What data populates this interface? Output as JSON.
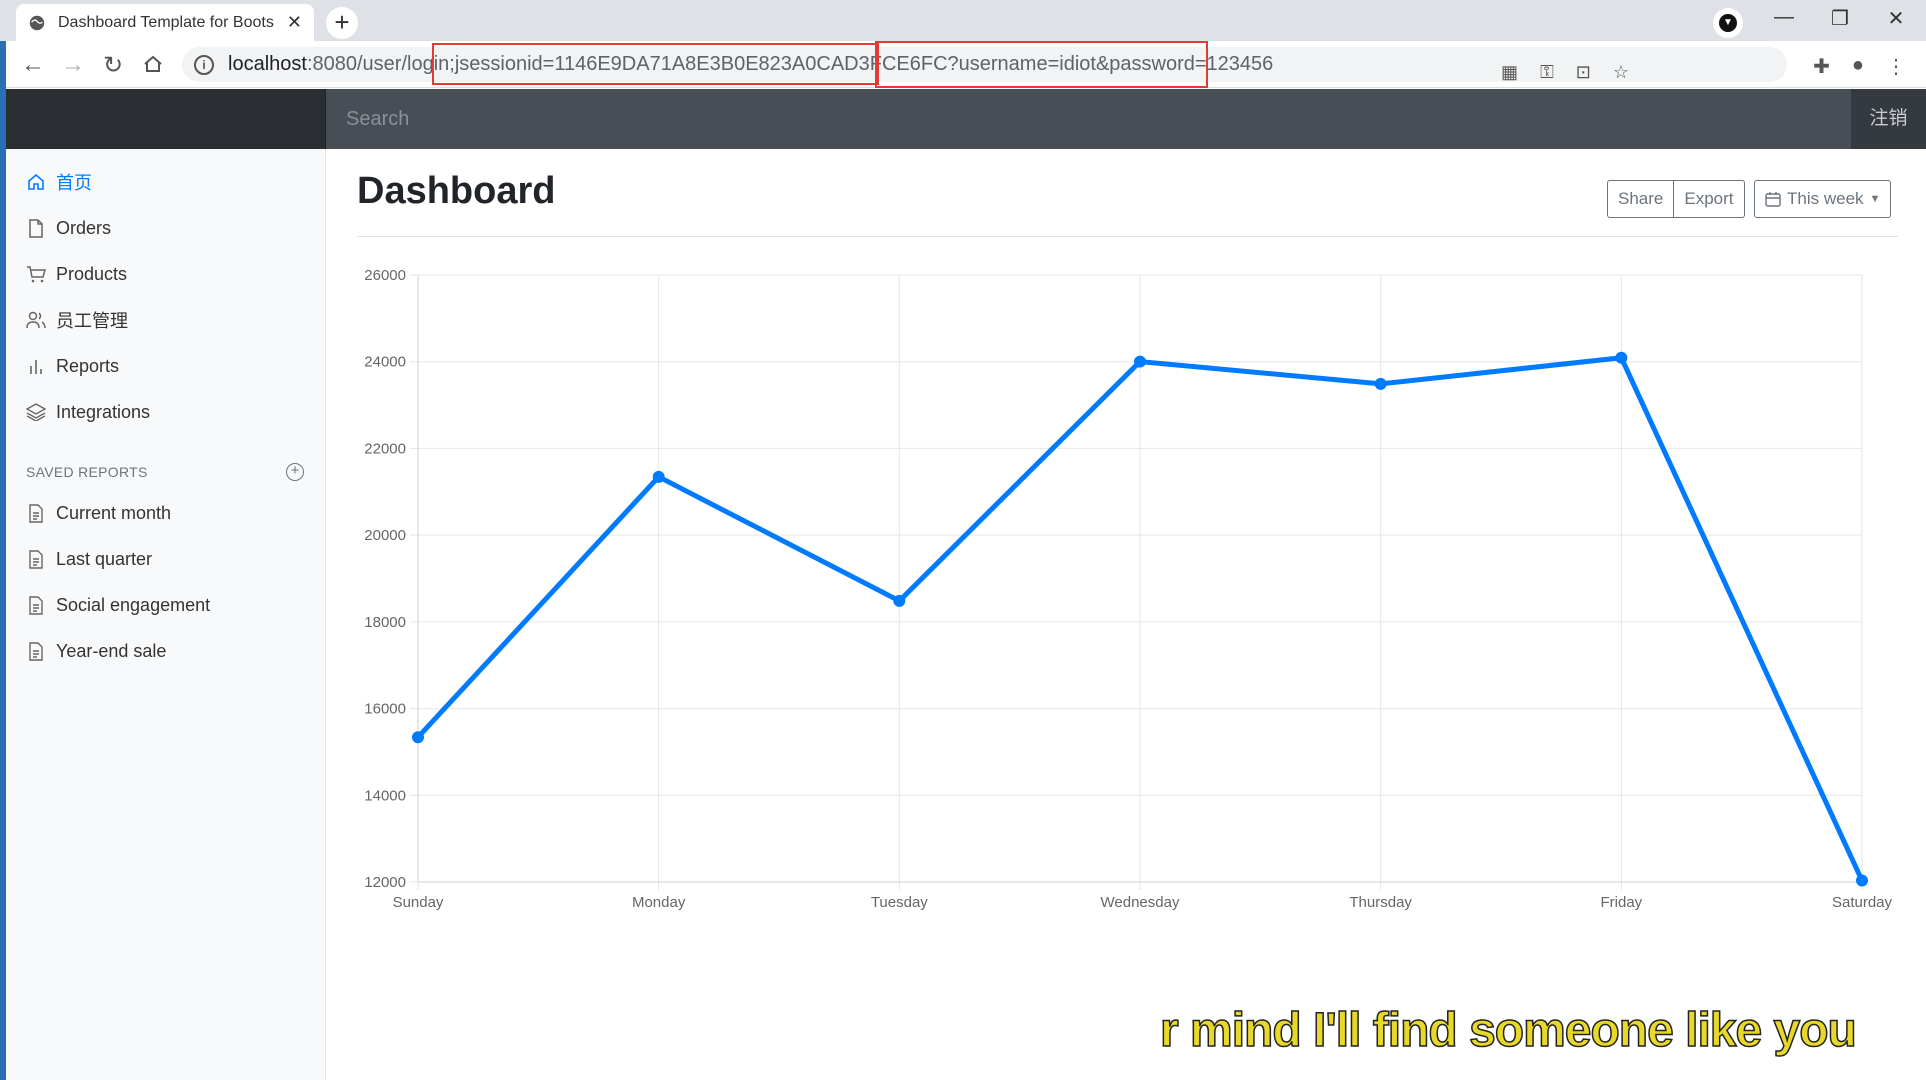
{
  "browser": {
    "tab_title": "Dashboard Template for Boots",
    "url_host": "localhost",
    "url_rest": ":8080/user/login;jsessionid=1146E9DA71A8E3B0E823A0CAD3FCE6FC?username=idiot&password=123456"
  },
  "navbar": {
    "search_placeholder": "Search",
    "logout": "注销"
  },
  "sidebar": {
    "items": [
      {
        "label": "首页",
        "icon": "home-icon"
      },
      {
        "label": "Orders",
        "icon": "file-icon"
      },
      {
        "label": "Products",
        "icon": "cart-icon"
      },
      {
        "label": "员工管理",
        "icon": "users-icon"
      },
      {
        "label": "Reports",
        "icon": "bar-chart-icon"
      },
      {
        "label": "Integrations",
        "icon": "layers-icon"
      }
    ],
    "saved_heading": "SAVED REPORTS",
    "saved": [
      {
        "label": "Current month"
      },
      {
        "label": "Last quarter"
      },
      {
        "label": "Social engagement"
      },
      {
        "label": "Year-end sale"
      }
    ]
  },
  "main": {
    "title": "Dashboard",
    "share": "Share",
    "export": "Export",
    "range": "This week"
  },
  "chart_data": {
    "type": "line",
    "categories": [
      "Sunday",
      "Monday",
      "Tuesday",
      "Wednesday",
      "Thursday",
      "Friday",
      "Saturday"
    ],
    "values": [
      15339,
      21345,
      18483,
      24003,
      23489,
      24092,
      12034
    ],
    "ylim": [
      12000,
      26000
    ],
    "yticks": [
      12000,
      14000,
      16000,
      18000,
      20000,
      22000,
      24000,
      26000
    ],
    "line_color": "#007bff",
    "grid": true
  },
  "subtitle_text": "r mind I'll find someone like you",
  "colors": {
    "accent": "#007bff",
    "navbar": "#343a40"
  }
}
